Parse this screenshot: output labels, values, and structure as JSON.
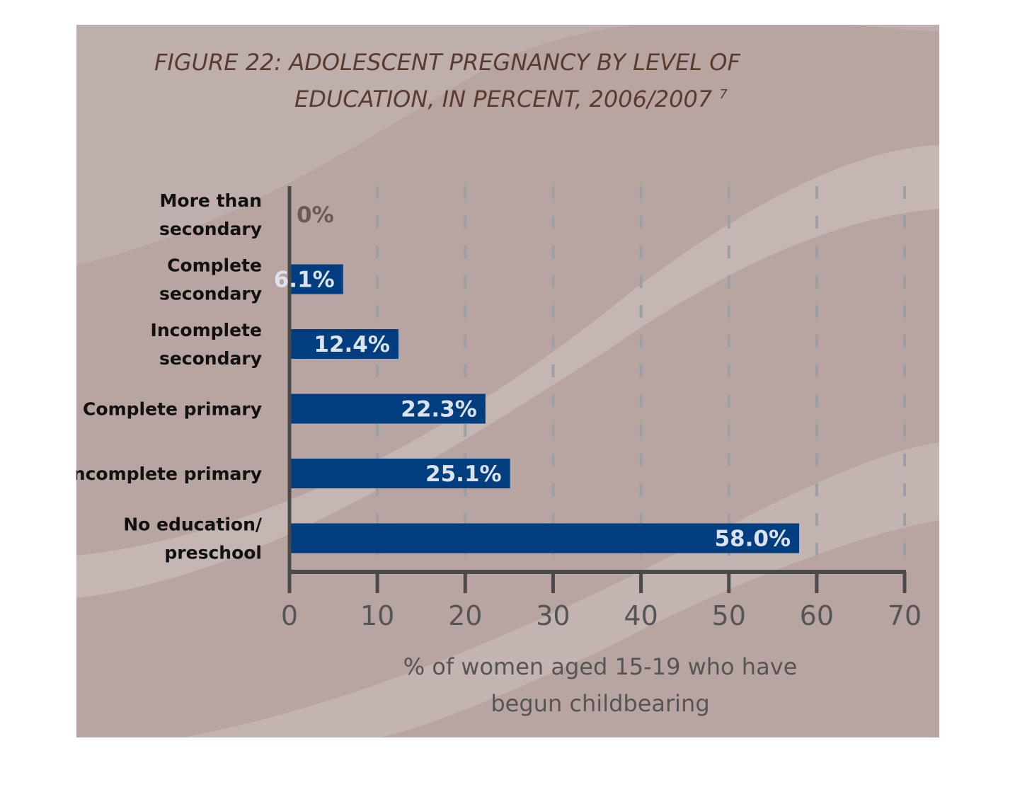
{
  "chart_data": {
    "type": "bar",
    "orientation": "horizontal",
    "title_line1": "FIGURE 22: ADOLESCENT PREGNANCY BY LEVEL OF",
    "title_line2": "EDUCATION, IN PERCENT, 2006/2007",
    "title_superscript": "7",
    "categories": [
      [
        "More than",
        "secondary"
      ],
      [
        "Complete",
        "secondary"
      ],
      [
        "Incomplete",
        "secondary"
      ],
      [
        "Complete primary"
      ],
      [
        "Incomplete primary"
      ],
      [
        "No education/",
        "preschool"
      ]
    ],
    "values": [
      0,
      6.1,
      12.4,
      22.3,
      25.1,
      58.0
    ],
    "value_labels": [
      "0%",
      "6.1%",
      "12.4%",
      "22.3%",
      "25.1%",
      "58.0%"
    ],
    "xlabel_line1": "% of women aged 15-19 who have",
    "xlabel_line2": "begun childbearing",
    "xlim": [
      0,
      70
    ],
    "xticks": [
      "0",
      "10",
      "20",
      "30",
      "40",
      "50",
      "60",
      "70"
    ],
    "grid": "vertical dashed",
    "colors": {
      "bar": "#003e80",
      "background": "#b8a5a2",
      "band": "#c3b7b5",
      "axis": "#4a4a4a",
      "grid": "#9aa0a3"
    }
  }
}
